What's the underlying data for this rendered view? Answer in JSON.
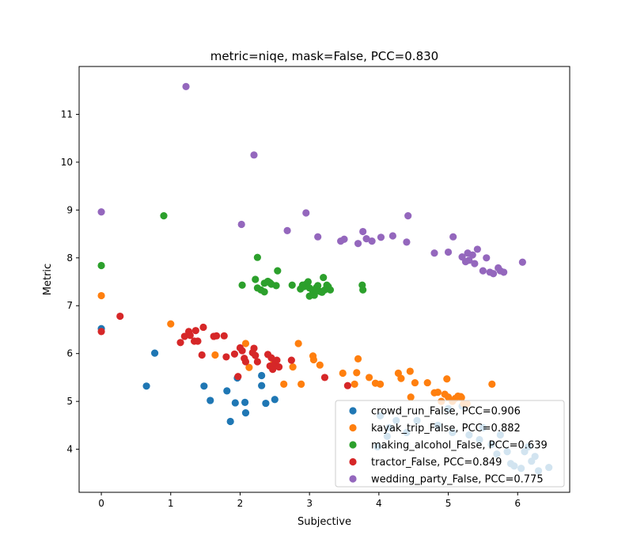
{
  "chart_data": {
    "type": "scatter",
    "title": "metric=niqe, mask=False, PCC=0.830",
    "xlabel": "Subjective",
    "ylabel": "Metric",
    "xlim": [
      -0.32,
      6.75
    ],
    "ylim": [
      3.1,
      12.0
    ],
    "xticks": [
      0,
      1,
      2,
      3,
      4,
      5,
      6
    ],
    "yticks": [
      4,
      5,
      6,
      7,
      8,
      9,
      10,
      11
    ],
    "xtick_labels": [
      "0",
      "1",
      "2",
      "3",
      "4",
      "5",
      "6"
    ],
    "ytick_labels": [
      "4",
      "5",
      "6",
      "7",
      "8",
      "9",
      "10",
      "11"
    ],
    "grid": false,
    "legend_position": "lower-right",
    "series": [
      {
        "name": "crowd_run_False, PCC=0.906",
        "color": "#1f77b4",
        "points": [
          [
            0,
            6.52
          ],
          [
            0.65,
            5.32
          ],
          [
            0.77,
            6.01
          ],
          [
            1.48,
            5.32
          ],
          [
            1.57,
            5.02
          ],
          [
            1.81,
            5.22
          ],
          [
            1.86,
            4.58
          ],
          [
            1.93,
            4.97
          ],
          [
            1.96,
            5.49
          ],
          [
            2.07,
            4.98
          ],
          [
            2.08,
            4.76
          ],
          [
            2.31,
            5.54
          ],
          [
            2.31,
            5.33
          ],
          [
            2.37,
            4.96
          ],
          [
            2.5,
            5.04
          ],
          [
            3.98,
            4.05
          ],
          [
            4.02,
            4.7
          ],
          [
            4.12,
            4.27
          ],
          [
            4.15,
            4.45
          ],
          [
            4.25,
            4.6
          ],
          [
            4.4,
            4.35
          ],
          [
            4.55,
            4.6
          ],
          [
            4.85,
            4.5
          ],
          [
            5.0,
            4.85
          ],
          [
            5.06,
            4.35
          ],
          [
            5.2,
            4.9
          ],
          [
            5.3,
            4.3
          ],
          [
            5.45,
            4.2
          ],
          [
            5.5,
            4.45
          ],
          [
            5.62,
            4.1
          ],
          [
            5.7,
            3.9
          ],
          [
            5.75,
            4.3
          ],
          [
            5.85,
            3.95
          ],
          [
            5.9,
            3.7
          ],
          [
            5.95,
            3.65
          ],
          [
            6.05,
            3.6
          ],
          [
            6.1,
            3.95
          ],
          [
            6.15,
            4.05
          ],
          [
            6.2,
            3.75
          ],
          [
            6.25,
            3.85
          ],
          [
            6.3,
            3.55
          ],
          [
            6.45,
            3.62
          ]
        ]
      },
      {
        "name": "kayak_trip_False, PCC=0.882",
        "color": "#ff7f0e",
        "points": [
          [
            0,
            7.21
          ],
          [
            1.0,
            6.62
          ],
          [
            1.64,
            5.97
          ],
          [
            2.08,
            6.21
          ],
          [
            2.13,
            5.71
          ],
          [
            2.47,
            5.77
          ],
          [
            2.63,
            5.36
          ],
          [
            2.76,
            5.72
          ],
          [
            2.84,
            6.21
          ],
          [
            2.88,
            5.36
          ],
          [
            3.05,
            5.95
          ],
          [
            3.06,
            5.87
          ],
          [
            3.15,
            5.76
          ],
          [
            3.48,
            5.59
          ],
          [
            3.65,
            5.36
          ],
          [
            3.68,
            5.6
          ],
          [
            3.7,
            5.89
          ],
          [
            3.86,
            5.5
          ],
          [
            3.95,
            5.38
          ],
          [
            4.02,
            5.36
          ],
          [
            4.28,
            5.59
          ],
          [
            4.32,
            5.48
          ],
          [
            4.45,
            5.63
          ],
          [
            4.46,
            5.09
          ],
          [
            4.52,
            5.39
          ],
          [
            4.7,
            5.39
          ],
          [
            4.8,
            5.18
          ],
          [
            4.85,
            5.19
          ],
          [
            4.9,
            5.0
          ],
          [
            4.95,
            5.15
          ],
          [
            5.0,
            5.09
          ],
          [
            5.06,
            5.0
          ],
          [
            5.1,
            5.06
          ],
          [
            5.18,
            5.1
          ],
          [
            5.22,
            4.95
          ],
          [
            5.27,
            4.95
          ],
          [
            5.63,
            5.36
          ],
          [
            4.98,
            5.47
          ],
          [
            5.14,
            5.11
          ],
          [
            5.19,
            5.08
          ]
        ]
      },
      {
        "name": "making_alcohol_False, PCC=0.639",
        "color": "#2ca02c",
        "points": [
          [
            0,
            7.84
          ],
          [
            0.9,
            8.88
          ],
          [
            2.03,
            7.43
          ],
          [
            2.22,
            7.55
          ],
          [
            2.25,
            8.01
          ],
          [
            2.25,
            7.37
          ],
          [
            2.3,
            7.33
          ],
          [
            2.35,
            7.47
          ],
          [
            2.35,
            7.29
          ],
          [
            2.4,
            7.51
          ],
          [
            2.43,
            7.48
          ],
          [
            2.45,
            7.45
          ],
          [
            2.52,
            7.42
          ],
          [
            2.54,
            7.73
          ],
          [
            2.75,
            7.43
          ],
          [
            2.87,
            7.35
          ],
          [
            2.9,
            7.43
          ],
          [
            2.92,
            7.4
          ],
          [
            2.95,
            7.45
          ],
          [
            2.98,
            7.5
          ],
          [
            3.0,
            7.37
          ],
          [
            3.0,
            7.2
          ],
          [
            3.05,
            7.3
          ],
          [
            3.07,
            7.22
          ],
          [
            3.1,
            7.38
          ],
          [
            3.12,
            7.42
          ],
          [
            3.15,
            7.3
          ],
          [
            3.18,
            7.28
          ],
          [
            3.2,
            7.59
          ],
          [
            3.22,
            7.33
          ],
          [
            3.25,
            7.43
          ],
          [
            3.27,
            7.4
          ],
          [
            3.3,
            7.33
          ],
          [
            3.76,
            7.43
          ],
          [
            3.77,
            7.33
          ]
        ]
      },
      {
        "name": "tractor_False, PCC=0.849",
        "color": "#d62728",
        "points": [
          [
            0,
            6.46
          ],
          [
            0.27,
            6.78
          ],
          [
            1.14,
            6.23
          ],
          [
            1.2,
            6.36
          ],
          [
            1.26,
            6.46
          ],
          [
            1.28,
            6.38
          ],
          [
            1.34,
            6.26
          ],
          [
            1.36,
            6.48
          ],
          [
            1.39,
            6.26
          ],
          [
            1.45,
            5.97
          ],
          [
            1.47,
            6.55
          ],
          [
            1.62,
            6.36
          ],
          [
            1.66,
            6.37
          ],
          [
            1.77,
            6.37
          ],
          [
            1.8,
            5.93
          ],
          [
            1.92,
            5.99
          ],
          [
            1.97,
            5.52
          ],
          [
            2.0,
            6.12
          ],
          [
            2.03,
            6.06
          ],
          [
            2.06,
            5.9
          ],
          [
            2.08,
            5.83
          ],
          [
            2.18,
            6.02
          ],
          [
            2.2,
            6.11
          ],
          [
            2.22,
            5.96
          ],
          [
            2.25,
            5.83
          ],
          [
            2.4,
            5.98
          ],
          [
            2.43,
            5.74
          ],
          [
            2.45,
            5.91
          ],
          [
            2.47,
            5.67
          ],
          [
            2.5,
            5.79
          ],
          [
            2.53,
            5.86
          ],
          [
            2.56,
            5.72
          ],
          [
            2.74,
            5.86
          ],
          [
            3.22,
            5.5
          ],
          [
            3.55,
            5.33
          ]
        ]
      },
      {
        "name": "wedding_party_False, PCC=0.775",
        "color": "#9467bd",
        "points": [
          [
            0,
            8.96
          ],
          [
            1.22,
            11.58
          ],
          [
            2.02,
            8.7
          ],
          [
            2.2,
            10.15
          ],
          [
            2.68,
            8.57
          ],
          [
            2.95,
            8.94
          ],
          [
            3.12,
            8.44
          ],
          [
            3.45,
            8.35
          ],
          [
            3.5,
            8.39
          ],
          [
            3.7,
            8.3
          ],
          [
            3.77,
            8.55
          ],
          [
            3.82,
            8.4
          ],
          [
            3.9,
            8.35
          ],
          [
            4.03,
            8.43
          ],
          [
            4.2,
            8.46
          ],
          [
            4.4,
            8.33
          ],
          [
            4.42,
            8.88
          ],
          [
            4.8,
            8.1
          ],
          [
            5.0,
            8.12
          ],
          [
            5.07,
            8.44
          ],
          [
            5.2,
            8.02
          ],
          [
            5.25,
            7.92
          ],
          [
            5.28,
            8.1
          ],
          [
            5.3,
            7.95
          ],
          [
            5.35,
            8.06
          ],
          [
            5.38,
            7.88
          ],
          [
            5.42,
            8.18
          ],
          [
            5.5,
            7.73
          ],
          [
            5.55,
            8.0
          ],
          [
            5.6,
            7.7
          ],
          [
            5.65,
            7.67
          ],
          [
            5.72,
            7.79
          ],
          [
            5.75,
            7.73
          ],
          [
            5.8,
            7.7
          ],
          [
            6.07,
            7.91
          ]
        ]
      }
    ]
  }
}
